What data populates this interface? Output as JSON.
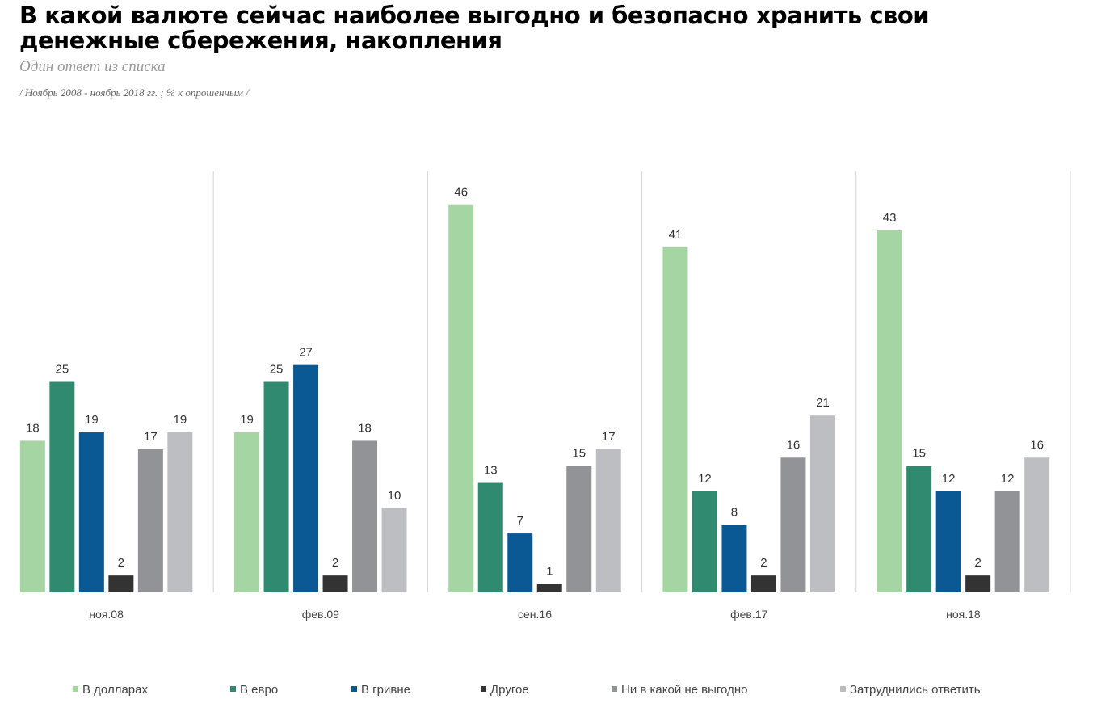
{
  "title": "В какой валюте сейчас наиболее выгодно и безопасно хранить свои денежные сбережения, накопления",
  "subtitle": "Один ответ из списка",
  "note": "/ Ноябрь 2008 - ноябрь 2018  гг. ; % к опрошенным /",
  "chart_data": {
    "type": "bar",
    "categories": [
      "ноя.08",
      "фев.09",
      "сен.16",
      "фев.17",
      "ноя.18"
    ],
    "series": [
      {
        "name": "В долларах",
        "color": "#a6d5a4",
        "values": [
          18,
          19,
          46,
          41,
          43
        ]
      },
      {
        "name": "В евро",
        "color": "#2f8a6f",
        "values": [
          25,
          25,
          13,
          12,
          15
        ]
      },
      {
        "name": "В гривне",
        "color": "#0b5994",
        "values": [
          19,
          27,
          7,
          8,
          12
        ]
      },
      {
        "name": "Другое",
        "color": "#333333",
        "values": [
          2,
          2,
          1,
          2,
          2
        ]
      },
      {
        "name": "Ни в какой не выгодно",
        "color": "#929397",
        "values": [
          17,
          18,
          15,
          16,
          12
        ]
      },
      {
        "name": "Затруднились ответить",
        "color": "#bdbec1",
        "values": [
          19,
          10,
          17,
          21,
          16
        ]
      }
    ],
    "ylim": [
      0,
      50
    ],
    "data_labels": true,
    "grid": false,
    "legend": "bottom"
  }
}
